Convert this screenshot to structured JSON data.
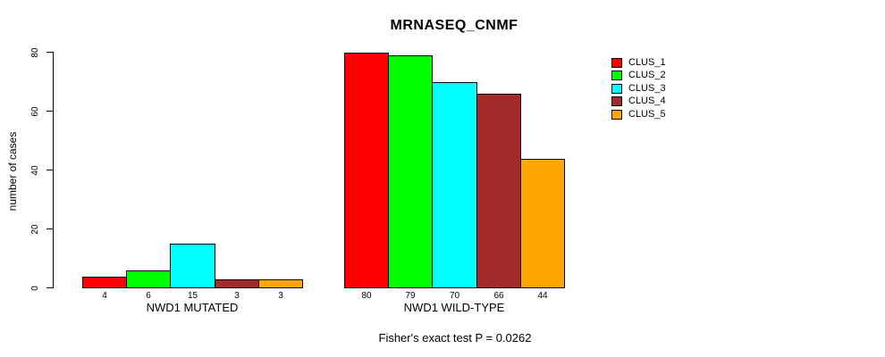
{
  "chart_data": {
    "type": "bar",
    "title": "MRNASEQ_CNMF",
    "ylabel": "number of cases",
    "xlabel": "",
    "categories": [
      "NWD1 MUTATED",
      "NWD1 WILD-TYPE"
    ],
    "series": [
      {
        "name": "CLUS_1",
        "color": "#ff0000",
        "values": [
          4,
          80
        ]
      },
      {
        "name": "CLUS_2",
        "color": "#00ff00",
        "values": [
          6,
          79
        ]
      },
      {
        "name": "CLUS_3",
        "color": "#00ffff",
        "values": [
          15,
          70
        ]
      },
      {
        "name": "CLUS_4",
        "color": "#a52a2a",
        "values": [
          3,
          66
        ]
      },
      {
        "name": "CLUS_5",
        "color": "#ffa500",
        "values": [
          3,
          44
        ]
      }
    ],
    "ylim": [
      0,
      80
    ],
    "yticks": [
      0,
      20,
      40,
      60,
      80
    ],
    "grid": false,
    "bar_value_labels_shown": true,
    "legend_position": "right",
    "annotation": "Fisher's exact test P = 0.0262"
  },
  "colors": {
    "background": "#ffffff",
    "axis": "#000000",
    "text": "#000000"
  }
}
